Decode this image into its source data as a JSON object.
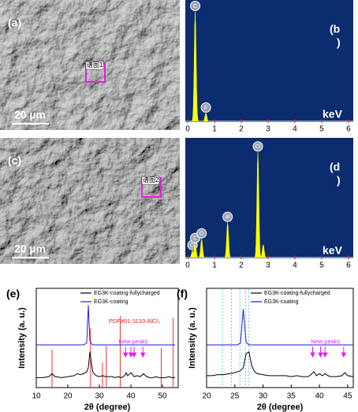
{
  "images": [
    {
      "label": "(a)",
      "scale_bar": "20 µm",
      "marker": "谱图1"
    },
    {
      "label": "(c)",
      "scale_bar": "20 µm",
      "marker": "谱图2"
    }
  ],
  "chart_data": [
    {
      "type": "eds",
      "label": [
        "(b",
        ")"
      ],
      "xlabel": "keV",
      "xlim": [
        0,
        6.15
      ],
      "xticks": [
        0,
        1,
        2,
        3,
        4,
        5,
        6
      ],
      "ylim": [
        0,
        100
      ],
      "categories": [
        "C",
        "F"
      ],
      "x": [
        0.28,
        0.68
      ],
      "values": [
        93,
        7
      ],
      "color": "#ffff00"
    },
    {
      "type": "eds",
      "label": [
        "(d",
        ")"
      ],
      "xlabel": "keV",
      "xlim": [
        0,
        6.15
      ],
      "xticks": [
        0,
        1,
        2,
        3,
        4,
        5,
        6
      ],
      "ylim": [
        0,
        100
      ],
      "categories": [
        "Cl",
        "C",
        "O",
        "Al",
        "Cl",
        null
      ],
      "x": [
        0.18,
        0.28,
        0.52,
        1.49,
        2.62,
        2.82
      ],
      "values": [
        6,
        12,
        16,
        30,
        90,
        11
      ],
      "color": "#ffff00"
    },
    {
      "type": "xrd",
      "label": "(e)",
      "xlabel": "2θ (degree)",
      "ylabel": "Intensity (a. u.)",
      "xlim": [
        10,
        55
      ],
      "xticks": [
        10,
        20,
        30,
        40,
        50
      ],
      "ylim": [
        0,
        100
      ],
      "x": [
        10,
        12,
        14,
        15,
        16,
        18,
        20,
        22,
        23,
        24,
        25,
        26,
        26.5,
        27,
        27.5,
        28,
        29,
        30,
        31,
        32,
        33,
        34,
        35,
        36,
        37,
        38,
        38.5,
        39,
        40,
        41,
        42,
        43,
        44,
        45,
        46,
        47,
        48,
        49,
        50,
        51,
        52,
        53,
        54
      ],
      "series": [
        {
          "name": "EG3K-coating-fullycharged",
          "color": "#000000",
          "values": [
            10,
            10,
            11,
            14,
            11,
            10,
            11,
            12,
            14,
            13,
            14,
            16,
            20,
            36,
            24,
            15,
            12,
            11,
            12,
            11,
            11,
            11,
            10,
            11,
            10,
            12,
            15,
            12,
            15,
            11,
            12,
            11,
            14,
            11,
            10,
            10,
            11,
            10,
            10,
            10,
            11,
            10,
            10
          ]
        },
        {
          "name": "EG3K-coating",
          "color": "#1f1fd0",
          "values": [
            43,
            43,
            43,
            43,
            43,
            43,
            43,
            43,
            43,
            43,
            43,
            45,
            83,
            47,
            44,
            43,
            43,
            43,
            43,
            43,
            43,
            43,
            43,
            43,
            43,
            43,
            43,
            43,
            43,
            43,
            43,
            43,
            43,
            43,
            43,
            43,
            43,
            43,
            43,
            43,
            43,
            43,
            43
          ]
        }
      ],
      "reference": {
        "name": "PDF#01-1133:AlCl₃",
        "color": "#e02020",
        "x": [
          15.0,
          27.2,
          31.0,
          32.2,
          36.6,
          49.6,
          53.4
        ],
        "values": [
          38,
          60,
          25,
          42,
          72,
          40,
          70
        ]
      },
      "annotation": {
        "text": "New peaks",
        "color": "#e020e0",
        "x": [
          38.3,
          40.0,
          41.0,
          43.8
        ],
        "values": [
          31,
          31,
          31,
          31
        ]
      }
    },
    {
      "type": "xrd",
      "label": "(f)",
      "xlabel": "2θ (degree)",
      "ylabel": "Intensity (a. u.)",
      "xlim": [
        20,
        46
      ],
      "xticks": [
        20,
        25,
        30,
        35,
        40,
        45
      ],
      "ylim": [
        0,
        100
      ],
      "x": [
        20,
        21,
        22,
        23,
        24,
        25,
        25.5,
        26,
        26.5,
        27,
        27.5,
        28,
        28.5,
        29,
        30,
        31,
        32,
        33,
        34,
        35,
        36,
        37,
        38,
        38.5,
        39,
        39.5,
        40,
        40.5,
        41,
        41.5,
        42,
        43,
        44,
        44.5,
        45,
        46
      ],
      "series": [
        {
          "name": "EG3K-coating-fullycharged",
          "color": "#000000",
          "values": [
            12,
            12,
            13,
            13,
            14,
            15,
            16,
            17,
            20,
            34,
            36,
            22,
            16,
            14,
            13,
            12,
            12,
            12,
            12,
            11,
            12,
            11,
            11,
            13,
            16,
            12,
            14,
            12,
            14,
            12,
            11,
            11,
            12,
            15,
            12,
            11
          ]
        },
        {
          "name": "EG3K-coating",
          "color": "#1f1fd0",
          "values": [
            43,
            43,
            43,
            43,
            43,
            43,
            43,
            45,
            79,
            46,
            43,
            43,
            43,
            43,
            43,
            43,
            43,
            43,
            43,
            43,
            43,
            43,
            43,
            43,
            43,
            43,
            43,
            43,
            43,
            43,
            43,
            43,
            43,
            43,
            43,
            43
          ]
        }
      ],
      "guides": {
        "color": "#40c0e0",
        "x": [
          22.8,
          24.4,
          25.9,
          26.9,
          27.5
        ]
      },
      "annotation": {
        "text": "New peaks",
        "color": "#e020e0",
        "x": [
          38.8,
          40.2,
          41.0,
          44.3
        ],
        "values": [
          31,
          31,
          31,
          31
        ]
      }
    }
  ]
}
